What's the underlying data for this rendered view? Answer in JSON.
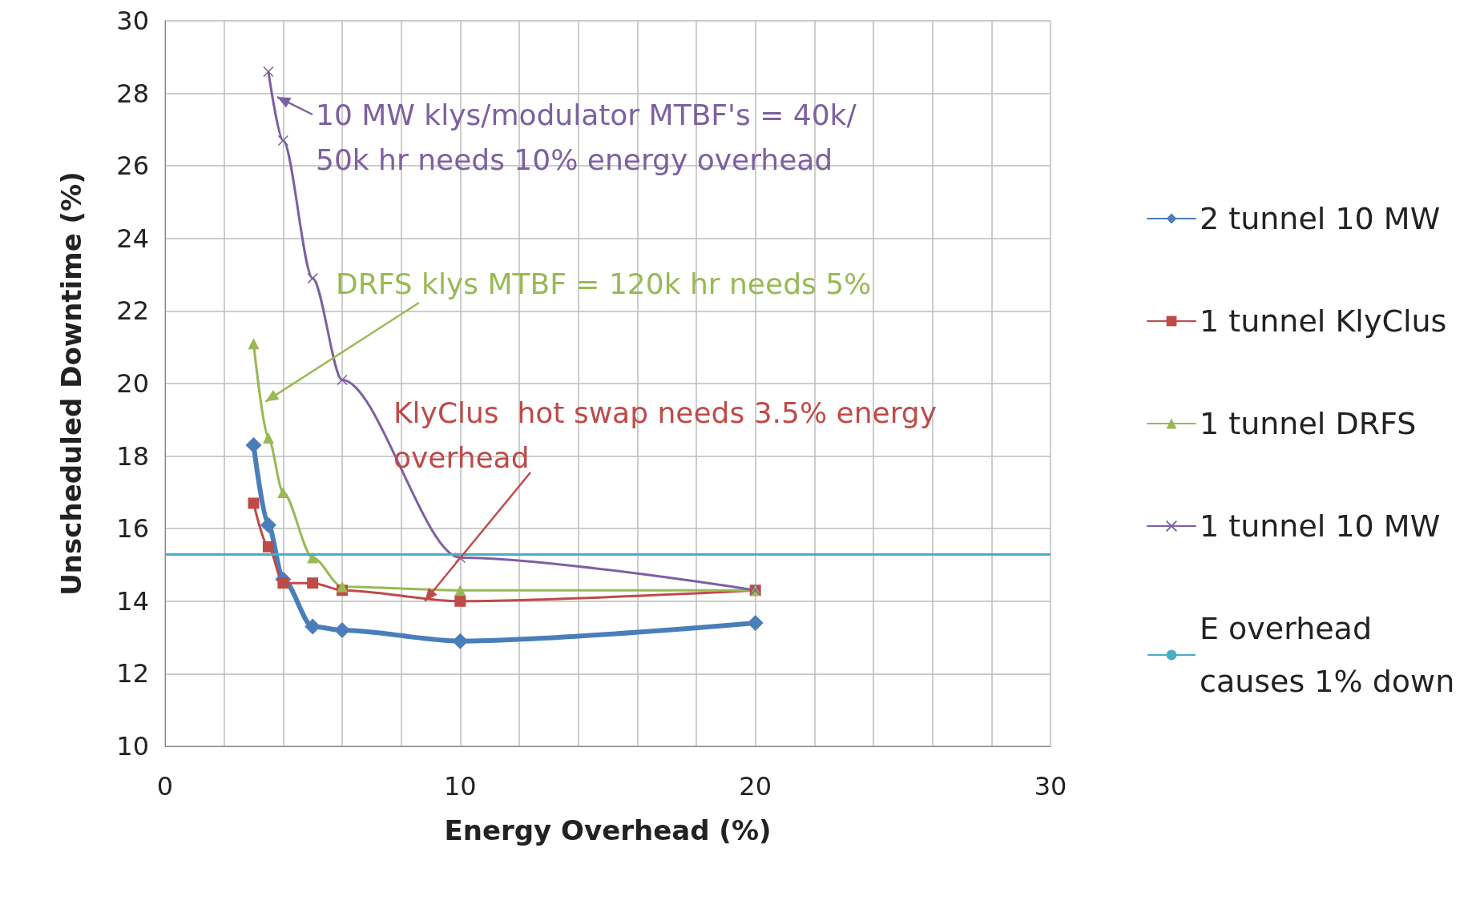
{
  "chart_data": {
    "type": "line",
    "xlabel": "Energy Overhead (%)",
    "ylabel": "Unscheduled Downtime (%)",
    "x": [
      3,
      3.5,
      4,
      5,
      6,
      10,
      20
    ],
    "series": [
      {
        "name": "2 tunnel 10 MW",
        "color": "#4a7ebb",
        "marker": "diamond",
        "values": [
          18.3,
          16.1,
          14.6,
          13.3,
          13.2,
          12.9,
          13.4
        ]
      },
      {
        "name": "1 tunnel KlyClus",
        "color": "#be4b48",
        "marker": "square",
        "values": [
          16.7,
          15.5,
          14.5,
          14.5,
          14.3,
          14.0,
          14.3
        ]
      },
      {
        "name": "1 tunnel DRFS",
        "color": "#98b954",
        "marker": "triangle",
        "values": [
          21.1,
          18.5,
          17.0,
          15.2,
          14.4,
          14.3,
          14.3
        ]
      },
      {
        "name": "1 tunnel 10 MW",
        "color": "#7d60a0",
        "marker": "cross",
        "values": [
          null,
          28.6,
          26.7,
          22.9,
          20.1,
          15.2,
          14.3
        ]
      }
    ],
    "ref_lines": [
      {
        "axis": "y",
        "value": 15.3,
        "label": "E overhead causes 1% down",
        "color": "#4bacc6"
      }
    ],
    "annotations": [
      {
        "text": "10 MW klys/modulator MTBF's = 40k/50k hr needs 10% energy overhead",
        "x": 3.8,
        "y": 27.9
      },
      {
        "text": "DRFS klys MTBF = 120k hr needs 5%",
        "x": 3.4,
        "y": 19.5
      },
      {
        "text": "KlyClus  hot swap needs 3.5% energy overhead",
        "x": 8.8,
        "y": 14.0
      }
    ],
    "xlim": [
      0,
      30
    ],
    "xticks": [
      0,
      {
        "value": 2,
        "label": null
      },
      {
        "value": 4,
        "label": null
      },
      {
        "value": 6,
        "label": null
      },
      {
        "value": 8,
        "label": null
      },
      10,
      {
        "value": 12,
        "label": null
      },
      {
        "value": 14,
        "label": null
      },
      {
        "value": 16,
        "label": null
      },
      {
        "value": 18,
        "label": null
      },
      20,
      {
        "value": 22,
        "label": null
      },
      {
        "value": 24,
        "label": null
      },
      {
        "value": 26,
        "label": null
      },
      {
        "value": 28,
        "label": null
      },
      30
    ],
    "ylim": [
      10,
      30
    ],
    "yticks": [
      10,
      12,
      14,
      16,
      18,
      20,
      22,
      24,
      26,
      28,
      30
    ],
    "grid": true,
    "legend": "right"
  }
}
